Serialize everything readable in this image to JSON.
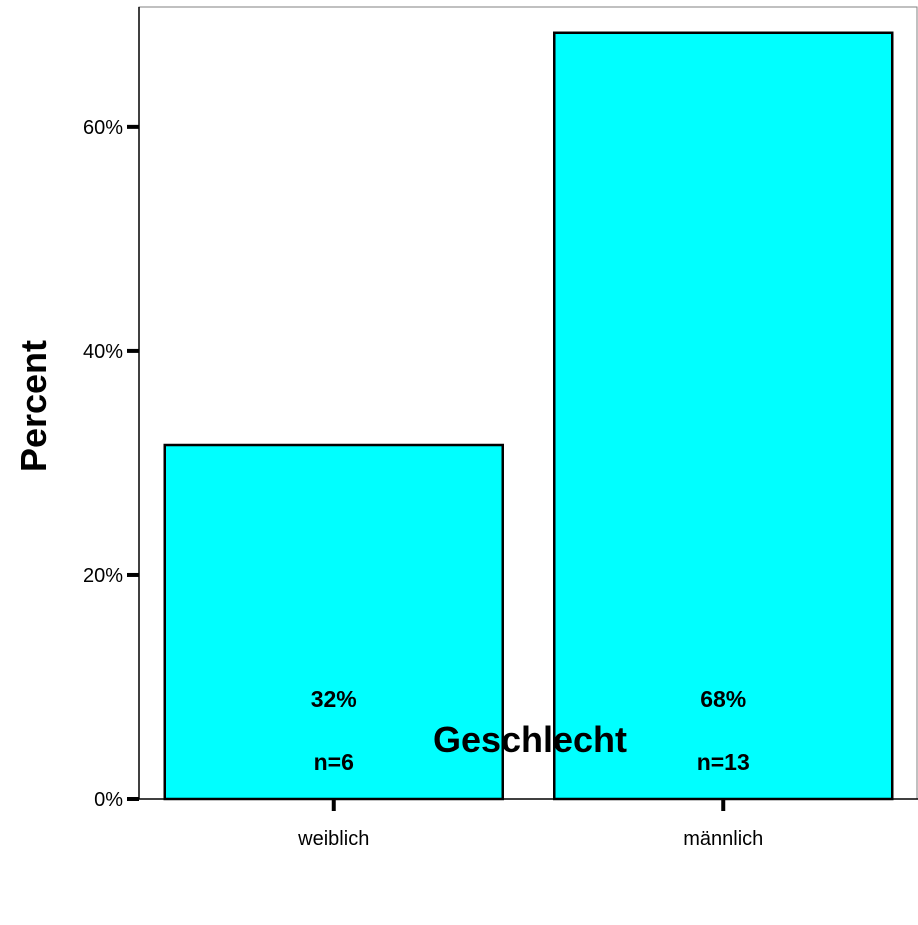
{
  "chart_data": {
    "type": "bar",
    "categories": [
      "weiblich",
      "männlich"
    ],
    "values": [
      31.6,
      68.4
    ],
    "percent_labels": [
      "32%",
      "68%"
    ],
    "count_labels": [
      "n=6",
      "n=13"
    ],
    "xlabel": "Geschlecht",
    "ylabel": "Percent",
    "ylim": [
      0,
      70.7
    ],
    "yticks": [
      0,
      20,
      40,
      60
    ],
    "ytick_labels": [
      "0%",
      "20%",
      "40%",
      "60%"
    ],
    "bar_color": "#00FFFF",
    "grid": false,
    "legend": "none"
  }
}
